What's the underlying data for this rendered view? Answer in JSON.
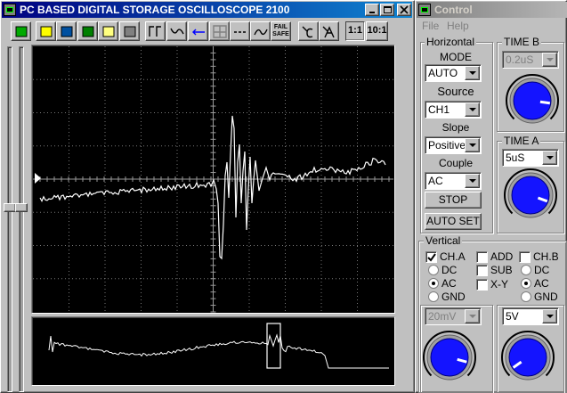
{
  "main_window": {
    "title": "PC BASED DIGITAL STORAGE OSCILLOSCOPE 2100",
    "toolbar": {
      "fail": "FAIL",
      "safe": "SAFE",
      "ratio_1": "1:1",
      "ratio_10": "10:1"
    }
  },
  "control_window": {
    "title": "Control",
    "menu": [
      "File",
      "Help"
    ],
    "horizontal": {
      "title": "Horizontal",
      "mode_label": "MODE",
      "mode": "AUTO",
      "source_label": "Source",
      "source": "CH1",
      "slope_label": "Slope",
      "slope": "Positive",
      "couple_label": "Couple",
      "couple": "AC",
      "stop": "STOP",
      "auto_set": "AUTO SET"
    },
    "time_b": {
      "title": "TIME B",
      "value": "0.2uS"
    },
    "time_a": {
      "title": "TIME A",
      "value": "5uS"
    },
    "vertical": {
      "title": "Vertical",
      "ch_a": "CH.A",
      "add": "ADD",
      "ch_b": "CH.B",
      "sub": "SUB",
      "xy": "X-Y",
      "ch_a_coupling": [
        "DC",
        "AC",
        "GND"
      ],
      "ch_b_coupling": [
        "DC",
        "AC",
        "GND"
      ],
      "ch_a_volts": "20mV",
      "ch_b_volts": "5V"
    }
  }
}
